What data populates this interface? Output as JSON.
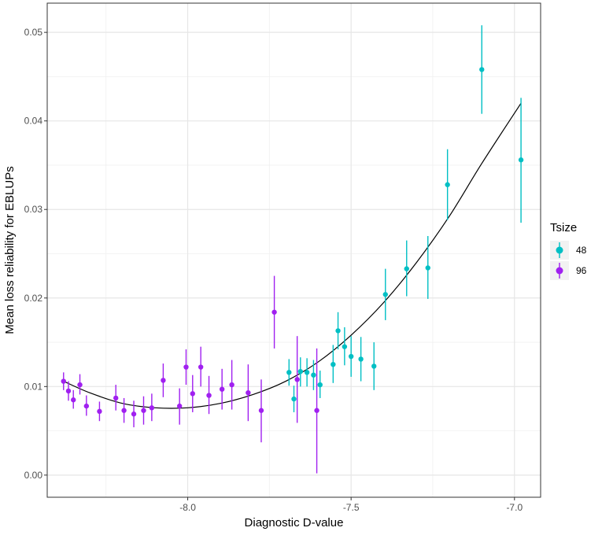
{
  "chart_data": {
    "type": "scatter",
    "xlabel": "Diagnostic D-value",
    "ylabel": "Mean loss reliability for EBLUPs",
    "xlim": [
      -8.43,
      -6.92
    ],
    "ylim": [
      -0.0025,
      0.0533
    ],
    "x_ticks": [
      {
        "value": -8.0,
        "label": "-8.0"
      },
      {
        "value": -7.5,
        "label": "-7.5"
      },
      {
        "value": -7.0,
        "label": "-7.0"
      }
    ],
    "y_ticks": [
      {
        "value": 0.0,
        "label": "0.00"
      },
      {
        "value": 0.01,
        "label": "0.01"
      },
      {
        "value": 0.02,
        "label": "0.02"
      },
      {
        "value": 0.03,
        "label": "0.03"
      },
      {
        "value": 0.04,
        "label": "0.04"
      },
      {
        "value": 0.05,
        "label": "0.05"
      }
    ],
    "grid": true,
    "legend": {
      "title": "Tsize",
      "position": "right"
    },
    "series": [
      {
        "name": "48",
        "color": "#00BFC4",
        "points": [
          {
            "x": -7.69,
            "y": 0.0116,
            "ymin": 0.0101,
            "ymax": 0.0131
          },
          {
            "x": -7.675,
            "y": 0.0086,
            "ymin": 0.0071,
            "ymax": 0.0101
          },
          {
            "x": -7.655,
            "y": 0.0117,
            "ymin": 0.01,
            "ymax": 0.0133
          },
          {
            "x": -7.635,
            "y": 0.0116,
            "ymin": 0.01,
            "ymax": 0.0132
          },
          {
            "x": -7.615,
            "y": 0.0113,
            "ymin": 0.0096,
            "ymax": 0.013
          },
          {
            "x": -7.595,
            "y": 0.0102,
            "ymin": 0.0087,
            "ymax": 0.0118
          },
          {
            "x": -7.555,
            "y": 0.0125,
            "ymin": 0.0104,
            "ymax": 0.0147
          },
          {
            "x": -7.54,
            "y": 0.0163,
            "ymin": 0.0142,
            "ymax": 0.0184
          },
          {
            "x": -7.52,
            "y": 0.0145,
            "ymin": 0.0124,
            "ymax": 0.0167
          },
          {
            "x": -7.5,
            "y": 0.0134,
            "ymin": 0.0111,
            "ymax": 0.0157
          },
          {
            "x": -7.47,
            "y": 0.0131,
            "ymin": 0.0106,
            "ymax": 0.0156
          },
          {
            "x": -7.43,
            "y": 0.0123,
            "ymin": 0.0096,
            "ymax": 0.015
          },
          {
            "x": -7.395,
            "y": 0.0204,
            "ymin": 0.0175,
            "ymax": 0.0233
          },
          {
            "x": -7.33,
            "y": 0.0233,
            "ymin": 0.0202,
            "ymax": 0.0265
          },
          {
            "x": -7.265,
            "y": 0.0234,
            "ymin": 0.0199,
            "ymax": 0.027
          },
          {
            "x": -7.205,
            "y": 0.0328,
            "ymin": 0.0288,
            "ymax": 0.0368
          },
          {
            "x": -7.1,
            "y": 0.0458,
            "ymin": 0.0408,
            "ymax": 0.0508
          },
          {
            "x": -6.98,
            "y": 0.0356,
            "ymin": 0.0285,
            "ymax": 0.0426
          }
        ]
      },
      {
        "name": "96",
        "color": "#A020F0",
        "points": [
          {
            "x": -8.38,
            "y": 0.0106,
            "ymin": 0.0096,
            "ymax": 0.0116
          },
          {
            "x": -8.365,
            "y": 0.0095,
            "ymin": 0.0084,
            "ymax": 0.0106
          },
          {
            "x": -8.35,
            "y": 0.0085,
            "ymin": 0.0075,
            "ymax": 0.0096
          },
          {
            "x": -8.33,
            "y": 0.0102,
            "ymin": 0.0091,
            "ymax": 0.0114
          },
          {
            "x": -8.31,
            "y": 0.0078,
            "ymin": 0.0067,
            "ymax": 0.009
          },
          {
            "x": -8.27,
            "y": 0.0072,
            "ymin": 0.0061,
            "ymax": 0.0083
          },
          {
            "x": -8.22,
            "y": 0.0087,
            "ymin": 0.0073,
            "ymax": 0.0102
          },
          {
            "x": -8.195,
            "y": 0.0073,
            "ymin": 0.0059,
            "ymax": 0.0087
          },
          {
            "x": -8.165,
            "y": 0.0069,
            "ymin": 0.0054,
            "ymax": 0.0084
          },
          {
            "x": -8.135,
            "y": 0.0073,
            "ymin": 0.0057,
            "ymax": 0.0089
          },
          {
            "x": -8.11,
            "y": 0.0076,
            "ymin": 0.0061,
            "ymax": 0.0092
          },
          {
            "x": -8.075,
            "y": 0.0107,
            "ymin": 0.0088,
            "ymax": 0.0126
          },
          {
            "x": -8.025,
            "y": 0.0078,
            "ymin": 0.0057,
            "ymax": 0.0098
          },
          {
            "x": -8.005,
            "y": 0.0122,
            "ymin": 0.0102,
            "ymax": 0.0142
          },
          {
            "x": -7.985,
            "y": 0.0092,
            "ymin": 0.0071,
            "ymax": 0.0113
          },
          {
            "x": -7.96,
            "y": 0.0122,
            "ymin": 0.01,
            "ymax": 0.0145
          },
          {
            "x": -7.935,
            "y": 0.009,
            "ymin": 0.0069,
            "ymax": 0.0112
          },
          {
            "x": -7.895,
            "y": 0.0097,
            "ymin": 0.0074,
            "ymax": 0.012
          },
          {
            "x": -7.865,
            "y": 0.0102,
            "ymin": 0.0074,
            "ymax": 0.013
          },
          {
            "x": -7.815,
            "y": 0.0093,
            "ymin": 0.0061,
            "ymax": 0.0125
          },
          {
            "x": -7.775,
            "y": 0.0073,
            "ymin": 0.0037,
            "ymax": 0.0108
          },
          {
            "x": -7.735,
            "y": 0.0184,
            "ymin": 0.0143,
            "ymax": 0.0225
          },
          {
            "x": -7.665,
            "y": 0.0108,
            "ymin": 0.0059,
            "ymax": 0.0157
          },
          {
            "x": -7.605,
            "y": 0.0073,
            "ymin": 0.0002,
            "ymax": 0.0143
          }
        ]
      }
    ],
    "fit_curve": {
      "color": "#000000",
      "points": [
        {
          "x": -8.38,
          "y": 0.0106
        },
        {
          "x": -8.3,
          "y": 0.0093
        },
        {
          "x": -8.2,
          "y": 0.0081
        },
        {
          "x": -8.1,
          "y": 0.0076
        },
        {
          "x": -8.0,
          "y": 0.0076
        },
        {
          "x": -7.9,
          "y": 0.0081
        },
        {
          "x": -7.8,
          "y": 0.0091
        },
        {
          "x": -7.7,
          "y": 0.0106
        },
        {
          "x": -7.6,
          "y": 0.0128
        },
        {
          "x": -7.5,
          "y": 0.0158
        },
        {
          "x": -7.4,
          "y": 0.0195
        },
        {
          "x": -7.3,
          "y": 0.024
        },
        {
          "x": -7.2,
          "y": 0.0292
        },
        {
          "x": -7.1,
          "y": 0.0352
        },
        {
          "x": -6.98,
          "y": 0.042
        }
      ]
    }
  }
}
